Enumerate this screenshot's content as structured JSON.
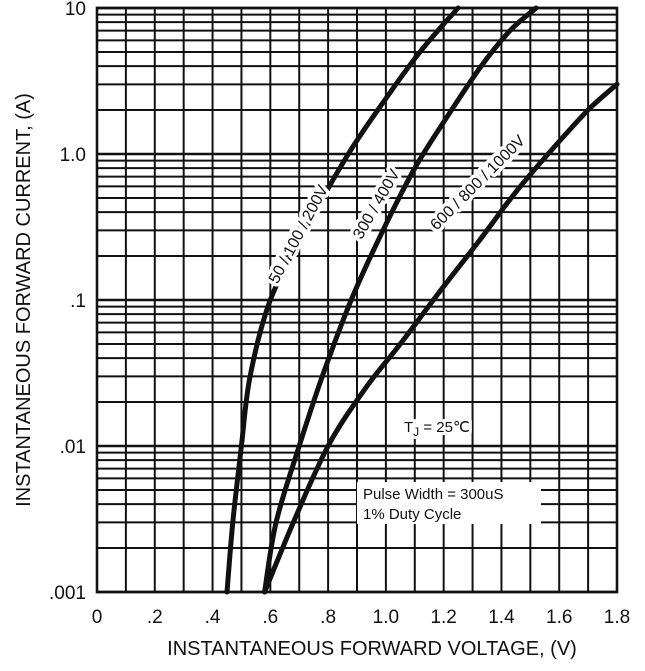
{
  "chart_data": {
    "type": "line",
    "title": "",
    "xlabel": "INSTANTANEOUS FORWARD VOLTAGE, (V)",
    "ylabel": "INSTANTANEOUS FORWARD CURRENT, (A)",
    "xlim": [
      0,
      1.8
    ],
    "ylim": [
      0.001,
      10
    ],
    "yscale": "log",
    "grid": true,
    "x_ticks": [
      {
        "value": 0,
        "label": "0"
      },
      {
        "value": 0.2,
        "label": ".2"
      },
      {
        "value": 0.4,
        "label": ".4"
      },
      {
        "value": 0.6,
        "label": ".6"
      },
      {
        "value": 0.8,
        "label": ".8"
      },
      {
        "value": 1.0,
        "label": "1.0"
      },
      {
        "value": 1.2,
        "label": "1.2"
      },
      {
        "value": 1.4,
        "label": "1.4"
      },
      {
        "value": 1.6,
        "label": "1.6"
      },
      {
        "value": 1.8,
        "label": "1.8"
      }
    ],
    "y_ticks": [
      {
        "value": 10,
        "label": "10"
      },
      {
        "value": 1,
        "label": "1.0"
      },
      {
        "value": 0.1,
        "label": ".1"
      },
      {
        "value": 0.01,
        "label": ".01"
      },
      {
        "value": 0.001,
        "label": ".001"
      }
    ],
    "series": [
      {
        "name": "50 / 100 / 200V",
        "x": [
          0.45,
          0.47,
          0.5,
          0.53,
          0.6,
          0.72,
          0.87,
          1.0,
          1.1,
          1.18,
          1.25
        ],
        "y": [
          0.001,
          0.003,
          0.01,
          0.03,
          0.1,
          0.3,
          1.0,
          2.4,
          4.5,
          7.0,
          10
        ]
      },
      {
        "name": "300 / 400V",
        "x": [
          0.58,
          0.62,
          0.7,
          0.78,
          0.88,
          0.99,
          1.1,
          1.22,
          1.33,
          1.43,
          1.52
        ],
        "y": [
          0.001,
          0.003,
          0.01,
          0.03,
          0.1,
          0.3,
          0.8,
          1.9,
          4.0,
          7.0,
          10
        ]
      },
      {
        "name": "600 / 800 / 1000V",
        "x": [
          0.58,
          0.68,
          0.8,
          0.93,
          1.05,
          1.18,
          1.32,
          1.45,
          1.58,
          1.7,
          1.8
        ],
        "y": [
          0.001,
          0.003,
          0.01,
          0.025,
          0.05,
          0.11,
          0.25,
          0.55,
          1.1,
          2.0,
          3.0
        ]
      }
    ],
    "annotations": {
      "temperature": "TJ = 25℃",
      "pulse_width": "Pulse Width = 300uS",
      "duty_cycle": "1% Duty Cycle"
    },
    "colors": {
      "line": "#111111",
      "grid": "#111111",
      "background": "#ffffff"
    }
  }
}
